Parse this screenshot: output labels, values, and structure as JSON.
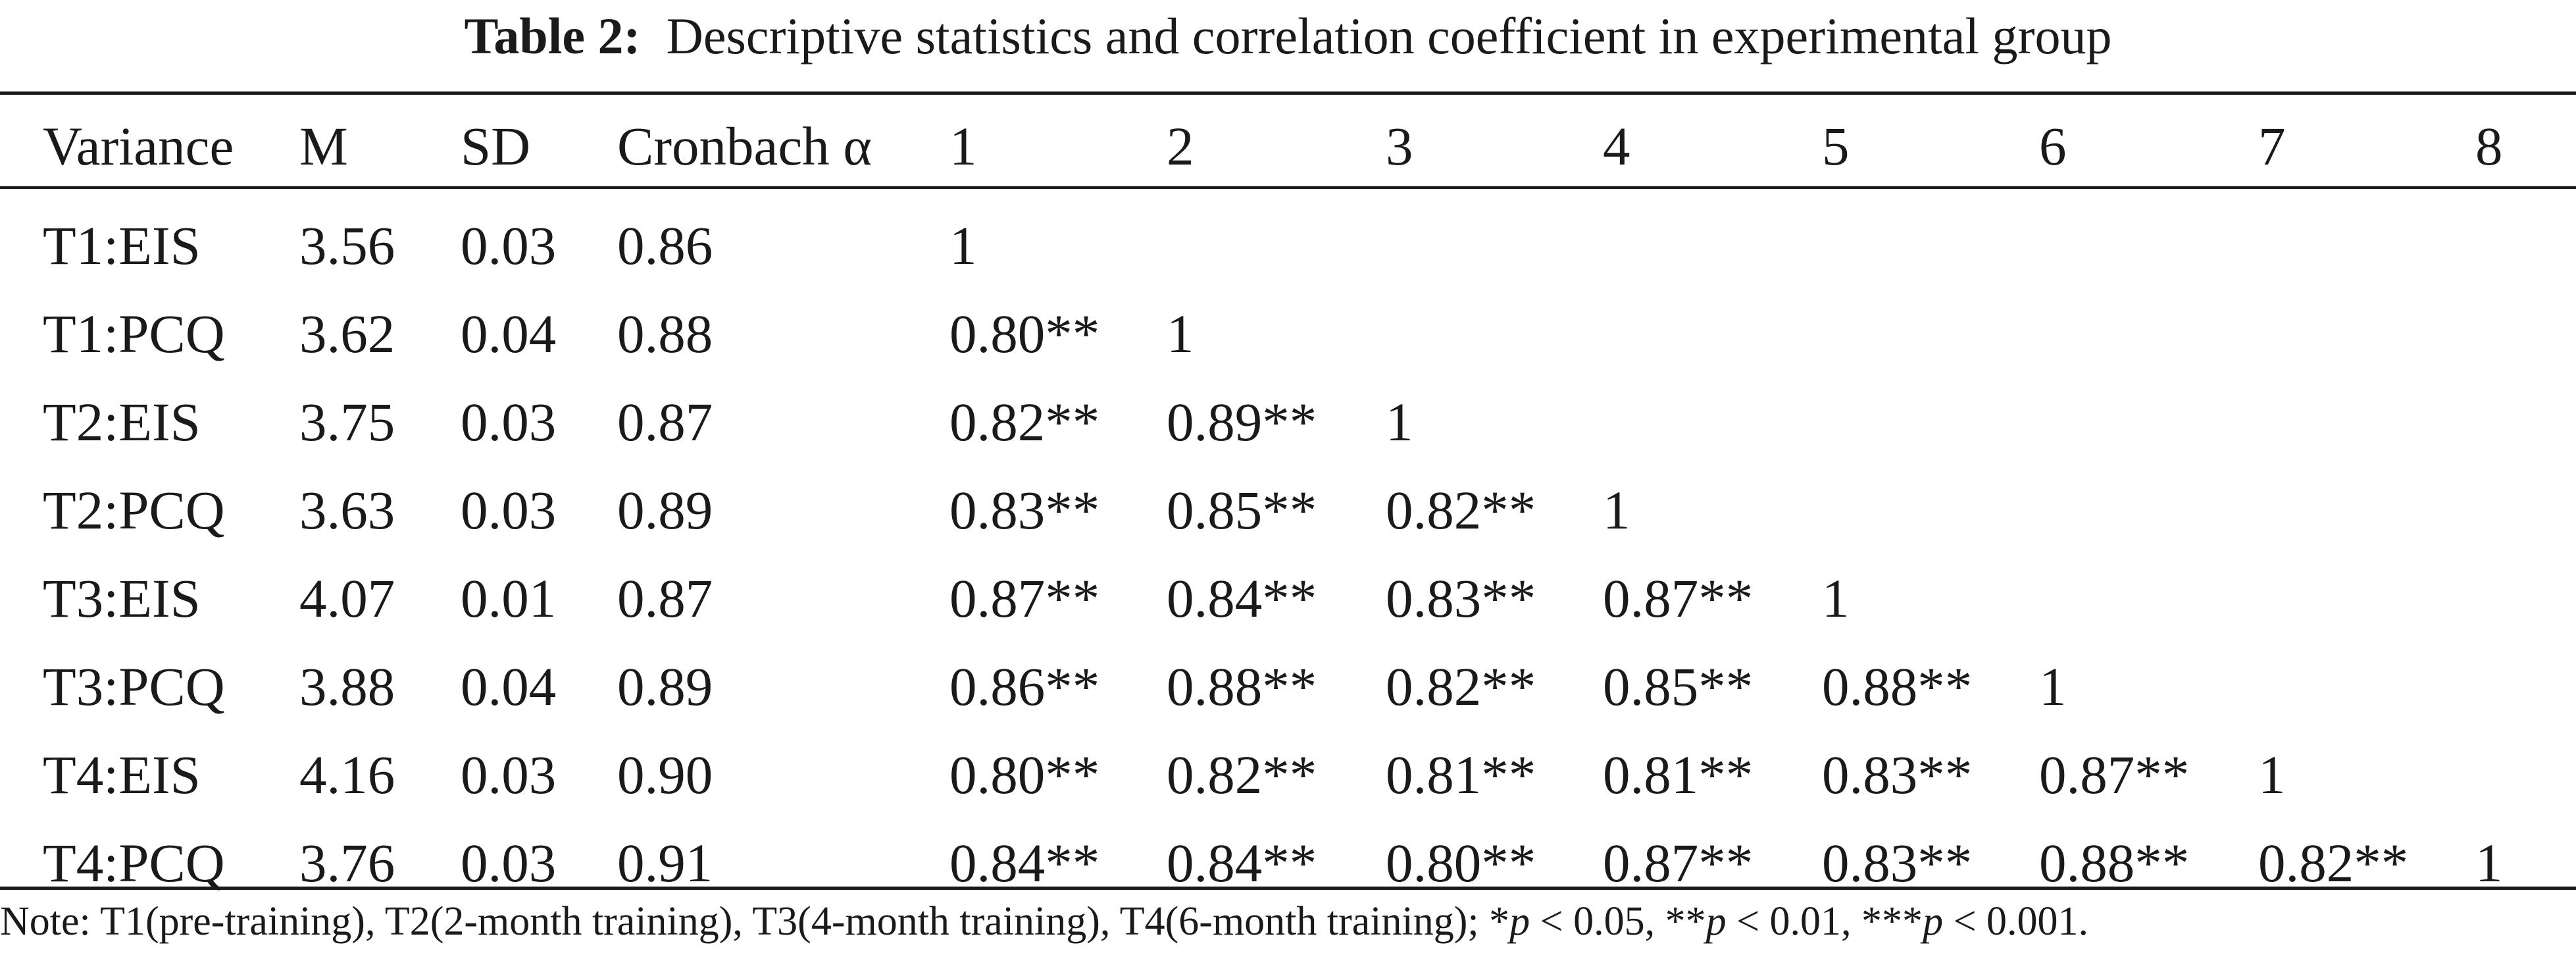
{
  "caption": {
    "label": "Table 2:",
    "title": "Descriptive statistics and correlation coefficient in experimental group"
  },
  "table": {
    "headers": [
      "Variance",
      "M",
      "SD",
      "Cronbach α",
      "1",
      "2",
      "3",
      "4",
      "5",
      "6",
      "7",
      "8"
    ],
    "rows": [
      [
        "T1:EIS",
        "3.56",
        "0.03",
        "0.86",
        "1",
        "",
        "",
        "",
        "",
        "",
        "",
        ""
      ],
      [
        "T1:PCQ",
        "3.62",
        "0.04",
        "0.88",
        "0.80**",
        "1",
        "",
        "",
        "",
        "",
        "",
        ""
      ],
      [
        "T2:EIS",
        "3.75",
        "0.03",
        "0.87",
        "0.82**",
        "0.89**",
        "1",
        "",
        "",
        "",
        "",
        ""
      ],
      [
        "T2:PCQ",
        "3.63",
        "0.03",
        "0.89",
        "0.83**",
        "0.85**",
        "0.82**",
        "1",
        "",
        "",
        "",
        ""
      ],
      [
        "T3:EIS",
        "4.07",
        "0.01",
        "0.87",
        "0.87**",
        "0.84**",
        "0.83**",
        "0.87**",
        "1",
        "",
        "",
        ""
      ],
      [
        "T3:PCQ",
        "3.88",
        "0.04",
        "0.89",
        "0.86**",
        "0.88**",
        "0.82**",
        "0.85**",
        "0.88**",
        "1",
        "",
        ""
      ],
      [
        "T4:EIS",
        "4.16",
        "0.03",
        "0.90",
        "0.80**",
        "0.82**",
        "0.81**",
        "0.81**",
        "0.83**",
        "0.87**",
        "1",
        ""
      ],
      [
        "T4:PCQ",
        "3.76",
        "0.03",
        "0.91",
        "0.84**",
        "0.84**",
        "0.80**",
        "0.87**",
        "0.83**",
        "0.88**",
        "0.82**",
        "1"
      ]
    ]
  },
  "note": {
    "prefix": "Note: T1(pre-training), T2(2-month training), T3(4-month training), T4(6-month training); *",
    "p1": "p",
    "t1": " < 0.05, **",
    "p2": "p",
    "t2": " < 0.01, ***",
    "p3": "p",
    "t3": " < 0.001."
  }
}
